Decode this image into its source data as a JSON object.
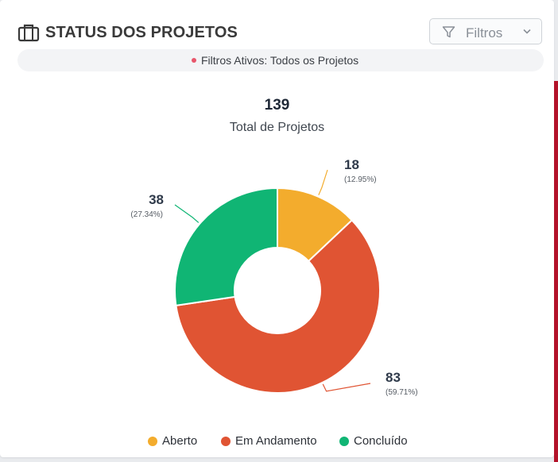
{
  "header": {
    "title": "STATUS DOS PROJETOS",
    "filter_label": "Filtros",
    "active_filters": "Filtros Ativos: Todos os Projetos"
  },
  "total": {
    "value": "139",
    "label": "Total de Projetos"
  },
  "chart_data": {
    "type": "pie",
    "variant": "donut",
    "categories": [
      "Aberto",
      "Em Andamento",
      "Concluído"
    ],
    "values": [
      18,
      83,
      38
    ],
    "data_labels": [
      "18",
      "83",
      "38"
    ],
    "percent_labels": [
      "(12.95%)",
      "(59.71%)",
      "(27.34%)"
    ],
    "colors": [
      "#f3ac2d",
      "#e05433",
      "#10b574"
    ],
    "legend_position": "bottom"
  }
}
